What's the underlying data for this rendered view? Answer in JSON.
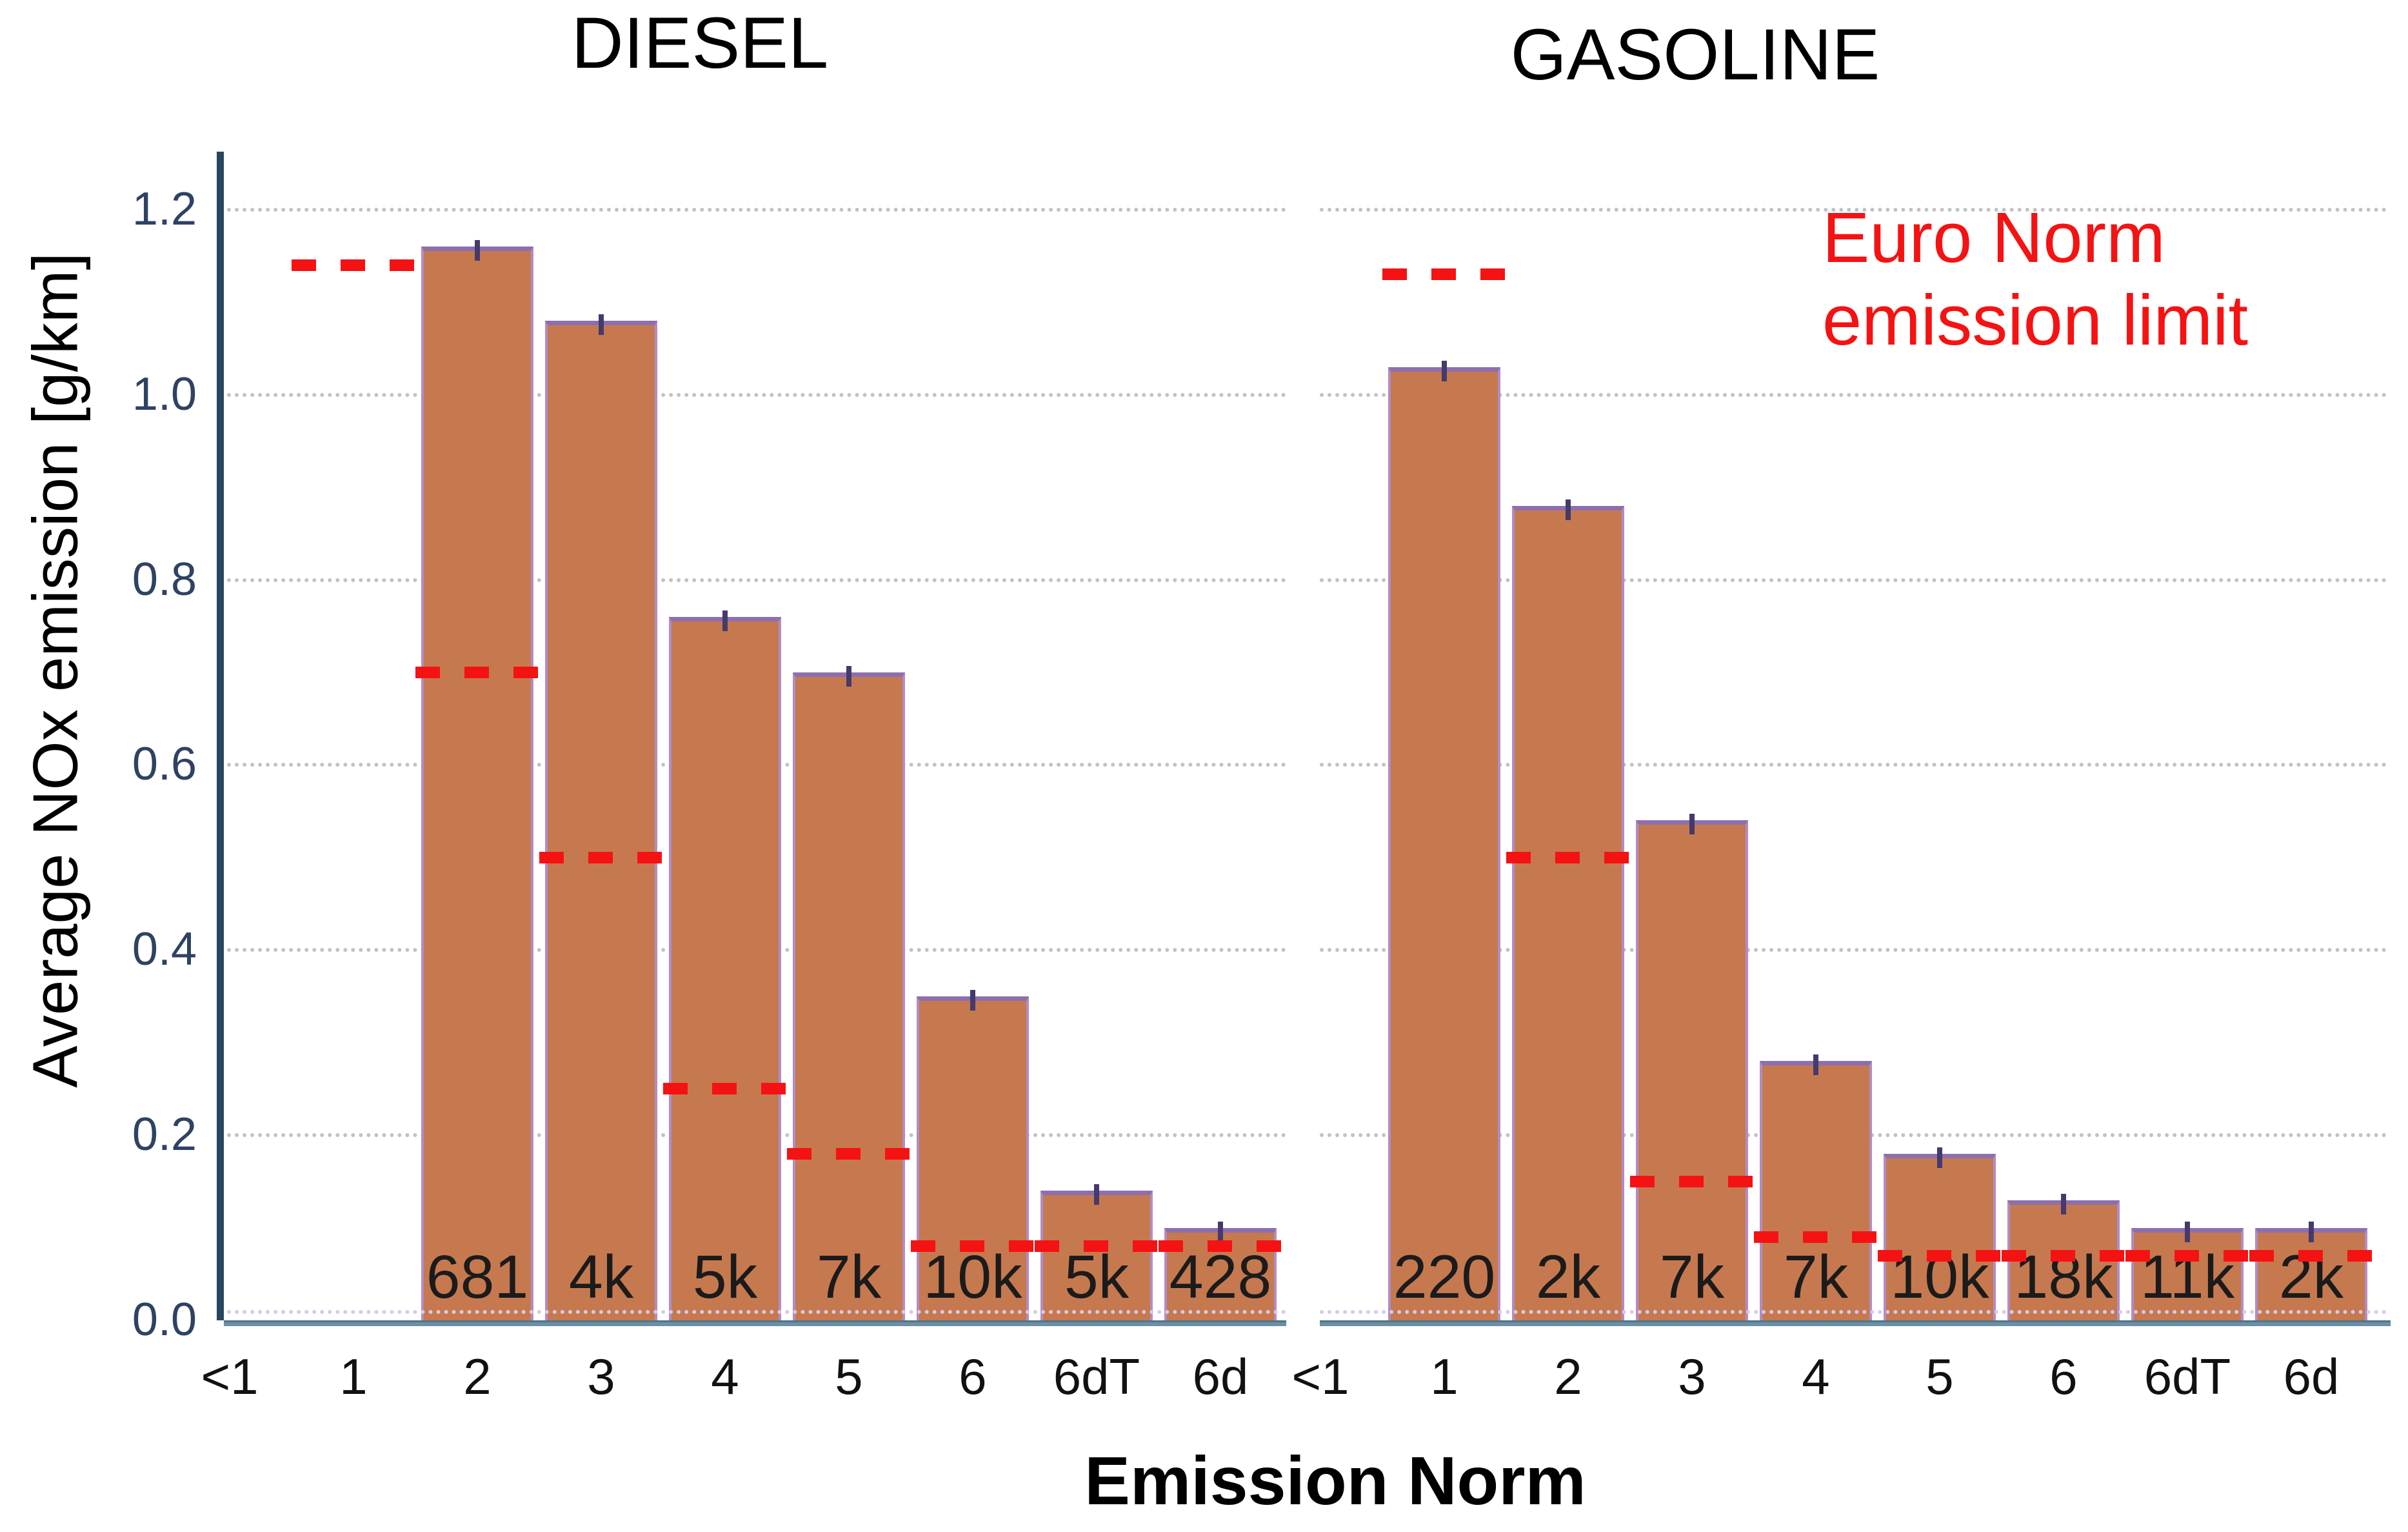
{
  "axis": {
    "ylabel": "Average NOx emission [g/km]",
    "xlabel": "Emission Norm",
    "ylim": [
      0,
      1.28
    ],
    "y_ticks": [
      {
        "label": "0.0",
        "value": 0.0
      },
      {
        "label": "0.2",
        "value": 0.2
      },
      {
        "label": "0.4",
        "value": 0.4
      },
      {
        "label": "0.6",
        "value": 0.6
      },
      {
        "label": "0.8",
        "value": 0.8
      },
      {
        "label": "1.0",
        "value": 1.0
      },
      {
        "label": "1.2",
        "value": 1.2
      }
    ],
    "grid": "dotted"
  },
  "legend": {
    "line1": "Euro Norm",
    "line2": "emission limit",
    "color": "#f51212",
    "position": "upper-right-of-gasoline-panel"
  },
  "colors": {
    "bar_fill": "#c6794f",
    "bar_edge": "#b18cc4",
    "bar_edge_top": "#8e6fae",
    "limit_dash": "#f51212",
    "axis_spine": "#27465f",
    "baseline": "#6b90a5",
    "gridline": "#c2c2c2",
    "ytick_text": "#2e4263",
    "count_text": "#1b1b1b"
  },
  "chart_data": [
    {
      "type": "bar",
      "title": "DIESEL",
      "xlabel": "Emission Norm",
      "ylabel": "Average NOx emission [g/km]",
      "ylim": [
        0,
        1.28
      ],
      "categories": [
        "<1",
        "1",
        "2",
        "3",
        "4",
        "5",
        "6",
        "6dT",
        "6d"
      ],
      "values": [
        null,
        null,
        1.16,
        1.08,
        0.76,
        0.7,
        0.35,
        0.14,
        0.1
      ],
      "bar_counts": [
        null,
        null,
        "681",
        "4k",
        "5k",
        "7k",
        "10k",
        "5k",
        "428"
      ],
      "euro_limits": [
        null,
        1.14,
        0.7,
        0.5,
        0.25,
        0.18,
        0.08,
        0.08,
        0.08
      ]
    },
    {
      "type": "bar",
      "title": "GASOLINE",
      "xlabel": "Emission Norm",
      "ylabel": "Average NOx emission [g/km]",
      "ylim": [
        0,
        1.28
      ],
      "categories": [
        "<1",
        "1",
        "2",
        "3",
        "4",
        "5",
        "6",
        "6dT",
        "6d"
      ],
      "values": [
        null,
        1.03,
        0.88,
        0.54,
        0.28,
        0.18,
        0.13,
        0.1,
        0.1
      ],
      "bar_counts": [
        null,
        "220",
        "2k",
        "7k",
        "7k",
        "10k",
        "18k",
        "11k",
        "2k"
      ],
      "euro_limits": [
        null,
        1.13,
        0.5,
        0.15,
        0.09,
        0.07,
        0.07,
        0.07,
        0.07
      ]
    }
  ]
}
